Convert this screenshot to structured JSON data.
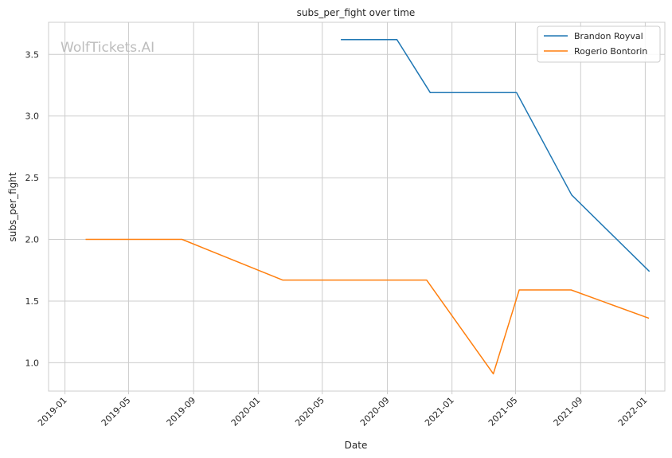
{
  "chart_data": {
    "type": "line",
    "title": "subs_per_fight over time",
    "xlabel": "Date",
    "ylabel": "subs_per_fight",
    "watermark": "WolfTickets.AI",
    "grid": true,
    "legend_position": "top-right",
    "xlim": [
      "2018-12-01",
      "2022-02-07"
    ],
    "ylim": [
      0.77,
      3.76
    ],
    "x_ticks": [
      "2019-01",
      "2019-05",
      "2019-09",
      "2020-01",
      "2020-05",
      "2020-09",
      "2021-01",
      "2021-05",
      "2021-09",
      "2022-01"
    ],
    "y_ticks": [
      "1.0",
      "1.5",
      "2.0",
      "2.5",
      "3.0",
      "3.5"
    ],
    "series": [
      {
        "name": "Brandon Royval",
        "color": "#1f77b4",
        "points": [
          {
            "x": "2020-06-05",
            "y": 3.62
          },
          {
            "x": "2020-09-19",
            "y": 3.62
          },
          {
            "x": "2020-11-21",
            "y": 3.19
          },
          {
            "x": "2021-05-03",
            "y": 3.19
          },
          {
            "x": "2021-08-15",
            "y": 2.36
          },
          {
            "x": "2022-01-09",
            "y": 1.74
          }
        ]
      },
      {
        "name": "Rogerio Bontorin",
        "color": "#ff7f0e",
        "points": [
          {
            "x": "2019-02-09",
            "y": 2.0
          },
          {
            "x": "2019-08-10",
            "y": 2.0
          },
          {
            "x": "2020-02-16",
            "y": 1.67
          },
          {
            "x": "2020-11-14",
            "y": 1.67
          },
          {
            "x": "2021-03-20",
            "y": 0.91
          },
          {
            "x": "2021-05-08",
            "y": 1.59
          },
          {
            "x": "2021-08-14",
            "y": 1.59
          },
          {
            "x": "2022-01-08",
            "y": 1.36
          }
        ]
      }
    ]
  }
}
